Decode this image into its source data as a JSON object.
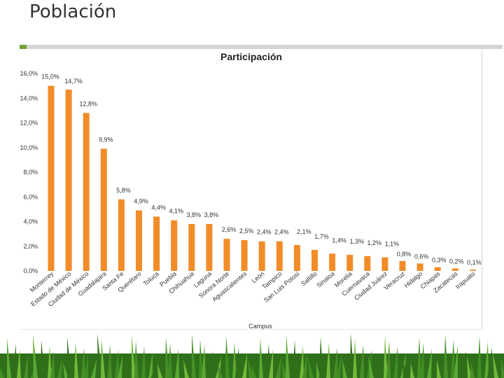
{
  "page": {
    "title": "Población"
  },
  "chart_data": {
    "type": "bar",
    "title": "Participación",
    "xlabel": "Campus",
    "ylabel": "",
    "ylim": [
      0,
      16
    ],
    "yticks": [
      "0,0%",
      "2,0%",
      "4,0%",
      "6,0%",
      "8,0%",
      "10,0%",
      "12,0%",
      "14,0%",
      "16,0%"
    ],
    "bar_color": "#f28c28",
    "categories": [
      "Monterrey",
      "Estado de México",
      "Ciudad de México",
      "Guadalajara",
      "Santa Fe",
      "Querétaro",
      "Toluca",
      "Puebla",
      "Chihuahua",
      "Laguna",
      "Sonora Norte",
      "Aguascalientes",
      "León",
      "Tampico",
      "San Luis Potosí",
      "Saltillo",
      "Sinaloa",
      "Morelia",
      "Cuernavaca",
      "Ciudad Juárez",
      "Veracruz",
      "Hidalgo",
      "Chiapas",
      "Zacatecas",
      "Irapuato"
    ],
    "values": [
      15.0,
      14.7,
      12.8,
      9.9,
      5.8,
      4.9,
      4.4,
      4.1,
      3.8,
      3.8,
      2.6,
      2.5,
      2.4,
      2.4,
      2.1,
      1.7,
      1.4,
      1.3,
      1.2,
      1.1,
      0.8,
      0.6,
      0.3,
      0.2,
      0.1
    ],
    "labels": [
      "15,0%",
      "14,7%",
      "12,8%",
      "9,9%",
      "5,8%",
      "4,9%",
      "4,4%",
      "4,1%",
      "3,8%",
      "3,8%",
      "2,6%",
      "2,5%",
      "2,4%",
      "2,4%",
      "2,1%",
      "1,7%",
      "1,4%",
      "1,3%",
      "1,2%",
      "1,1%",
      "0,8%",
      "0,6%",
      "0,3%",
      "0,2%",
      "0,1%"
    ]
  }
}
